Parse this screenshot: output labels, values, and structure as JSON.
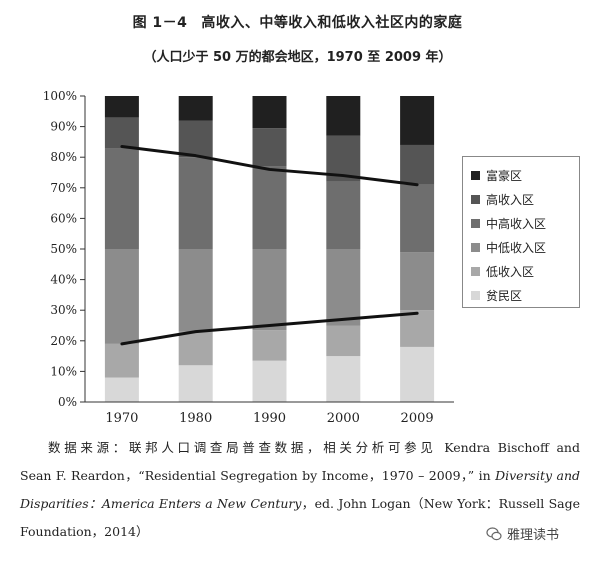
{
  "figure": {
    "number": "图 1－4",
    "title": "高收入、中等收入和低收入社区内的家庭",
    "subtitle": "（人口少于 50 万的都会地区，1970 至 2009 年）"
  },
  "chart_data": {
    "type": "bar",
    "stacked": true,
    "categories": [
      "1970",
      "1980",
      "1990",
      "2000",
      "2009"
    ],
    "yticks": [
      "0%",
      "10%",
      "20%",
      "30%",
      "40%",
      "50%",
      "60%",
      "70%",
      "80%",
      "90%",
      "100%"
    ],
    "ylim": [
      0,
      100
    ],
    "series": [
      {
        "name": "贫民区",
        "color": "#d8d8d8",
        "values": [
          8,
          12,
          13.5,
          15,
          18
        ]
      },
      {
        "name": "低收入区",
        "color": "#a8a8a8",
        "values": [
          11,
          11,
          10,
          10,
          12
        ]
      },
      {
        "name": "中低收入区",
        "color": "#8c8c8c",
        "values": [
          31,
          27,
          26.5,
          25,
          19
        ]
      },
      {
        "name": "中高收入区",
        "color": "#6e6e6e",
        "values": [
          33,
          30,
          27,
          22,
          22
        ]
      },
      {
        "name": "高收入区",
        "color": "#555555",
        "values": [
          10,
          12,
          12.5,
          15,
          13
        ]
      },
      {
        "name": "富豪区",
        "color": "#202020",
        "values": [
          7,
          8,
          10.5,
          13,
          16
        ]
      }
    ],
    "lines": [
      {
        "values": [
          83.5,
          80.5,
          76,
          74,
          71
        ]
      },
      {
        "values": [
          19,
          23,
          25,
          27,
          29
        ]
      }
    ],
    "legend_position": "right",
    "grid": false
  },
  "source": {
    "line1": "数据来源：联邦人口调查局普查数据，相关分析可参见 Kendra Bischoff and",
    "line2": "Sean F. Reardon，“Residential Segregation by Income，1970 – 2009，” in",
    "line2_italic": "Diversity and",
    "line3_italic": "Disparities：America Enters a New Century",
    "line3": "，ed. John Logan（New York：Russell Sage",
    "line4": "Foundation，2014）"
  },
  "watermark": {
    "text": "雅理读书"
  }
}
